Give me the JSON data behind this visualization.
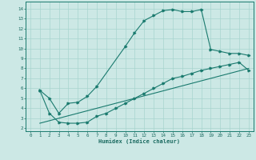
{
  "xlabel": "Humidex (Indice chaleur)",
  "bg_color": "#cce8e5",
  "grid_color": "#a8d4cf",
  "line_color": "#1a7a6e",
  "tick_color": "#1a6a60",
  "xlim": [
    -0.5,
    23.5
  ],
  "ylim": [
    1.7,
    14.7
  ],
  "xticks": [
    0,
    1,
    2,
    3,
    4,
    5,
    6,
    7,
    8,
    9,
    10,
    11,
    12,
    13,
    14,
    15,
    16,
    17,
    18,
    19,
    20,
    21,
    22,
    23
  ],
  "yticks": [
    2,
    3,
    4,
    5,
    6,
    7,
    8,
    9,
    10,
    11,
    12,
    13,
    14
  ],
  "curve1_x": [
    1,
    2,
    3,
    4,
    5,
    6,
    7,
    10,
    11,
    12,
    13,
    14,
    15,
    16,
    17,
    18,
    19,
    20,
    21,
    22,
    23
  ],
  "curve1_y": [
    5.8,
    5.0,
    3.5,
    4.5,
    4.6,
    5.2,
    6.2,
    10.2,
    11.6,
    12.8,
    13.3,
    13.8,
    13.9,
    13.7,
    13.7,
    13.9,
    9.9,
    9.7,
    9.5,
    9.5,
    9.3
  ],
  "curve2_x": [
    1,
    2,
    3,
    4,
    5,
    6,
    7,
    8,
    9,
    10,
    11,
    12,
    13,
    14,
    15,
    16,
    17,
    18,
    19,
    20,
    21,
    22,
    23
  ],
  "curve2_y": [
    5.8,
    3.5,
    2.6,
    2.5,
    2.5,
    2.6,
    3.2,
    3.5,
    4.0,
    4.5,
    5.0,
    5.5,
    6.0,
    6.5,
    7.0,
    7.2,
    7.5,
    7.8,
    8.0,
    8.2,
    8.4,
    8.6,
    7.8
  ],
  "line3_x": [
    1,
    23
  ],
  "line3_y": [
    2.5,
    8.0
  ]
}
